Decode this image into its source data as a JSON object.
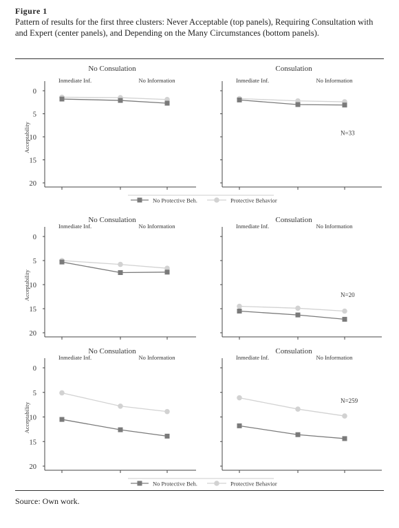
{
  "figure": {
    "label": "Figure 1",
    "caption": "Pattern of results for the first three clusters: Never Acceptable (top panels), Requiring Consultation with and Expert (center panels), and Depending on the Many Circumstances (bottom panels).",
    "source": "Source: Own work."
  },
  "colors": {
    "no_protective": "#7a7a7a",
    "protective": "#d2d2d2",
    "axis": "#444444"
  },
  "chart_data": [
    {
      "type": "line",
      "panel": "top-left",
      "title": "No Consulation",
      "categories": [
        "Inmediate Inf.",
        "",
        "No Information"
      ],
      "ylabel": "Acceptability",
      "ylim": [
        0,
        20
      ],
      "y_inverted": true,
      "yticks": [
        "0",
        "5",
        "10",
        "15",
        "20"
      ],
      "series": [
        {
          "name": "No Protective Beh.",
          "values": [
            1.8,
            2.1,
            2.7
          ]
        },
        {
          "name": "Protective Behavior",
          "values": [
            1.4,
            1.5,
            1.9
          ]
        }
      ]
    },
    {
      "type": "line",
      "panel": "top-right",
      "title": "Consulation",
      "categories": [
        "Inmediate Inf.",
        "",
        "No Information"
      ],
      "ylabel": "",
      "ylim": [
        0,
        20
      ],
      "y_inverted": true,
      "yticks": [],
      "annotation": "N=33",
      "series": [
        {
          "name": "No Protective Beh.",
          "values": [
            2.0,
            3.0,
            3.1
          ]
        },
        {
          "name": "Protective Behavior",
          "values": [
            1.7,
            2.2,
            2.4
          ]
        }
      ]
    },
    {
      "type": "line",
      "panel": "center-left",
      "title": "No Consulation",
      "categories": [
        "Inmediate Inf.",
        "",
        "No Information"
      ],
      "ylabel": "Acceptability",
      "ylim": [
        0,
        20
      ],
      "y_inverted": true,
      "yticks": [
        "0",
        "5",
        "10",
        "15",
        "20"
      ],
      "series": [
        {
          "name": "No Protective Beh.",
          "values": [
            5.3,
            7.5,
            7.4
          ]
        },
        {
          "name": "Protective Behavior",
          "values": [
            5.0,
            5.8,
            6.6
          ]
        }
      ]
    },
    {
      "type": "line",
      "panel": "center-right",
      "title": "Consulation",
      "categories": [
        "Inmediate Inf.",
        "",
        "No Information"
      ],
      "ylabel": "",
      "ylim": [
        0,
        20
      ],
      "y_inverted": true,
      "yticks": [],
      "annotation": "N=20",
      "series": [
        {
          "name": "No Protective Beh.",
          "values": [
            15.5,
            16.3,
            17.2
          ]
        },
        {
          "name": "Protective Behavior",
          "values": [
            14.5,
            14.9,
            15.5
          ]
        }
      ]
    },
    {
      "type": "line",
      "panel": "bottom-left",
      "title": "No Consulation",
      "categories": [
        "Inmediate Inf.",
        "",
        "No Information"
      ],
      "ylabel": "Acceptability",
      "ylim": [
        0,
        20
      ],
      "y_inverted": true,
      "yticks": [
        "0",
        "5",
        "10",
        "15",
        "20"
      ],
      "series": [
        {
          "name": "No Protective Beh.",
          "values": [
            10.5,
            12.6,
            13.9
          ]
        },
        {
          "name": "Protective Behavior",
          "values": [
            5.1,
            7.8,
            8.9
          ]
        }
      ]
    },
    {
      "type": "line",
      "panel": "bottom-right",
      "title": "Consulation",
      "categories": [
        "Inmediate Inf.",
        "",
        "No Information"
      ],
      "ylabel": "",
      "ylim": [
        0,
        20
      ],
      "y_inverted": true,
      "yticks": [],
      "annotation": "N=259",
      "series": [
        {
          "name": "No Protective Beh.",
          "values": [
            11.8,
            13.6,
            14.4
          ]
        },
        {
          "name": "Protective Behavior",
          "values": [
            6.1,
            8.4,
            9.8
          ]
        }
      ]
    }
  ],
  "legends": [
    {
      "items": [
        "No Protective Beh.",
        "Protective Behavior"
      ]
    },
    {
      "items": [
        "No Protective Beh.",
        "Protective Behavior"
      ]
    }
  ]
}
